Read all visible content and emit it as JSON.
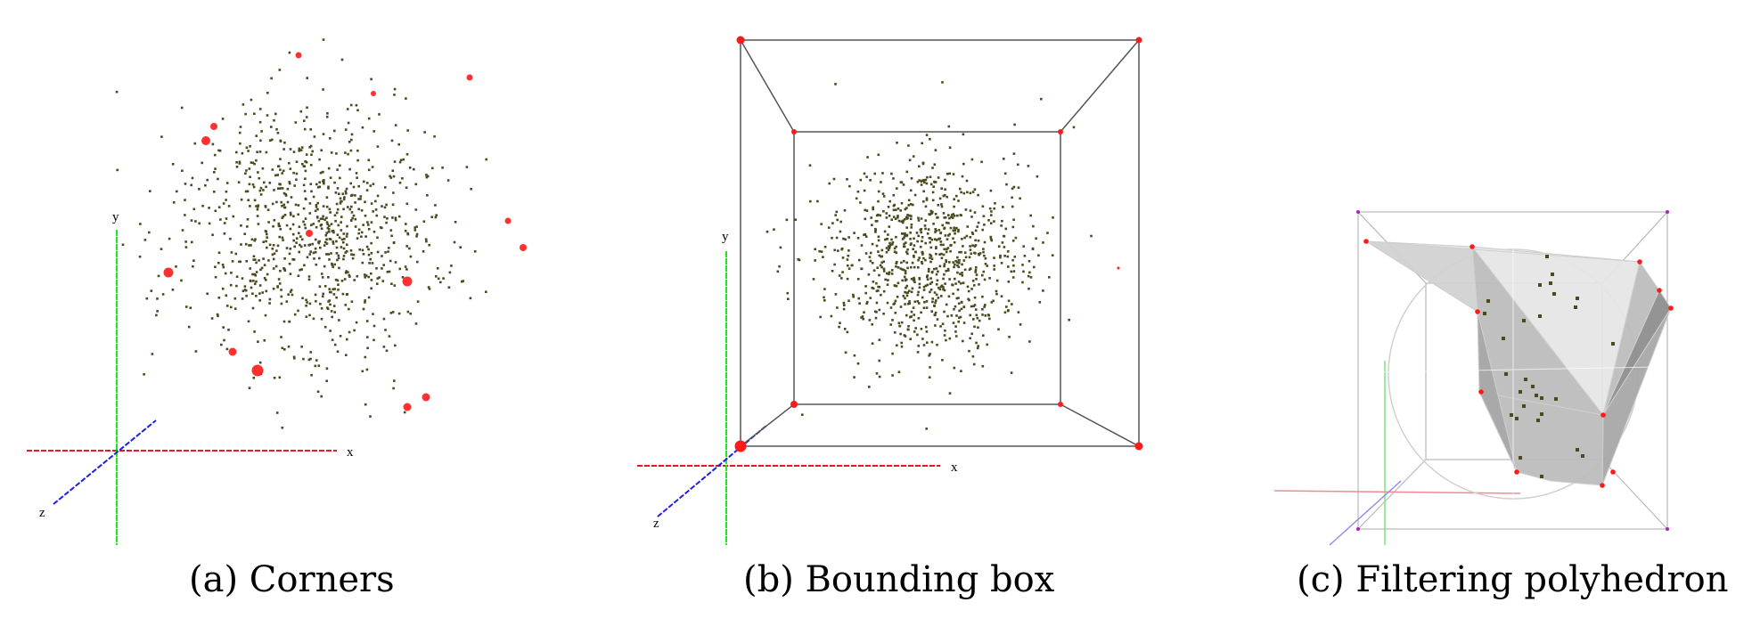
{
  "figure": {
    "panels": [
      {
        "id": "a",
        "caption": "(a) Corners",
        "axis_labels": {
          "x": "x",
          "y": "y",
          "z": "z"
        }
      },
      {
        "id": "b",
        "caption": "(b) Bounding box",
        "axis_labels": {
          "x": "x",
          "y": "y",
          "z": "z"
        }
      },
      {
        "id": "c",
        "caption": "(c) Filtering polyhedron"
      }
    ],
    "colors": {
      "points": "#4b4a1e",
      "corner_points": "#ff1a1a",
      "x_axis": "#e8141e",
      "y_axis": "#1ee81e",
      "z_axis": "#1e1ee8",
      "box_edges": "#555555",
      "polyhedron_faces": [
        "#e6e6e6",
        "#d2d2d2",
        "#bdbdbd",
        "#a8a8a8",
        "#8f8f8f"
      ],
      "box_vertices_c": "#b020c0"
    }
  }
}
